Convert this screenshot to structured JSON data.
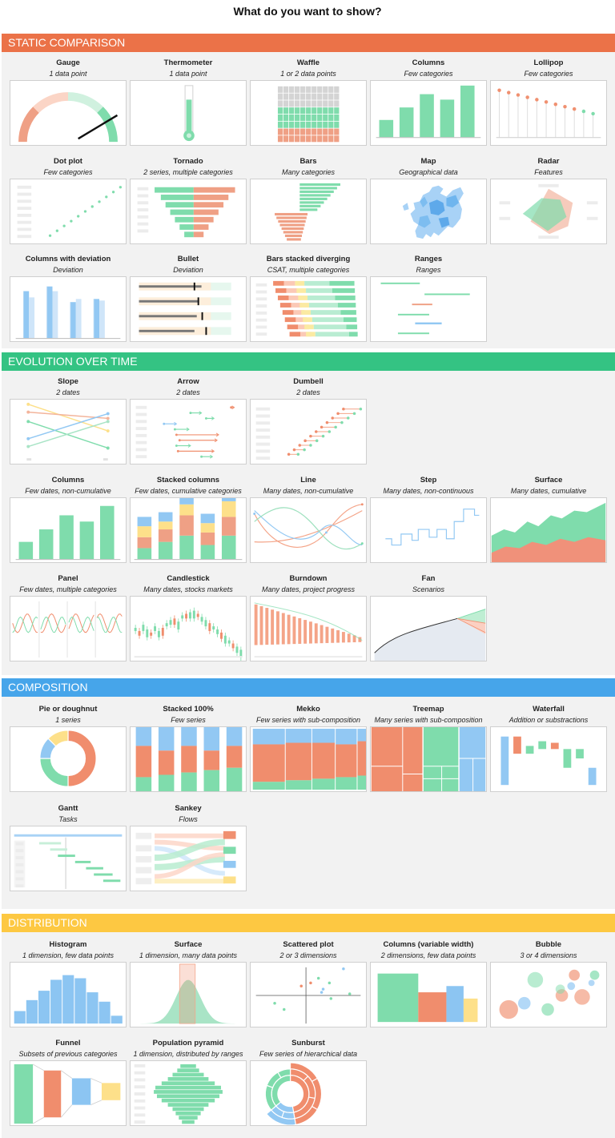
{
  "title": "What do you want to show?",
  "colors": {
    "orange": "#EB7248",
    "green": "#34C383",
    "blue": "#46A5EA",
    "yellow": "#FDC842",
    "mint": "#7FDCAC",
    "salmon": "#EFA085",
    "sky": "#92C8F3",
    "sand": "#FDE08A",
    "panel": "#F2F2F2"
  },
  "sections": [
    {
      "id": "static",
      "title": "STATIC COMPARISON",
      "color": "#EB7248",
      "rows": [
        [
          {
            "key": "gauge",
            "title": "Gauge",
            "subtitle": "1 data point"
          },
          {
            "key": "thermometer",
            "title": "Thermometer",
            "subtitle": "1 data point"
          },
          {
            "key": "waffle",
            "title": "Waffle",
            "subtitle": "1 or 2 data points"
          },
          {
            "key": "columns",
            "title": "Columns",
            "subtitle": "Few categories"
          },
          {
            "key": "lollipop",
            "title": "Lollipop",
            "subtitle": "Few categories"
          }
        ],
        [
          {
            "key": "dotplot",
            "title": "Dot plot",
            "subtitle": "Few categories"
          },
          {
            "key": "tornado",
            "title": "Tornado",
            "subtitle": "2 series, multiple categories"
          },
          {
            "key": "bars",
            "title": "Bars",
            "subtitle": "Many categories"
          },
          {
            "key": "map",
            "title": "Map",
            "subtitle": "Geographical data"
          },
          {
            "key": "radar",
            "title": "Radar",
            "subtitle": "Features"
          }
        ],
        [
          {
            "key": "coldev",
            "title": "Columns with deviation",
            "subtitle": "Deviation"
          },
          {
            "key": "bullet",
            "title": "Bullet",
            "subtitle": "Deviation"
          },
          {
            "key": "diverging",
            "title": "Bars stacked diverging",
            "subtitle": "CSAT, multiple categories"
          },
          {
            "key": "ranges",
            "title": "Ranges",
            "subtitle": "Ranges"
          }
        ]
      ]
    },
    {
      "id": "evolution",
      "title": "EVOLUTION OVER TIME",
      "color": "#34C383",
      "rows": [
        [
          {
            "key": "slope",
            "title": "Slope",
            "subtitle": "2 dates"
          },
          {
            "key": "arrow",
            "title": "Arrow",
            "subtitle": "2 dates"
          },
          {
            "key": "dumbell",
            "title": "Dumbell",
            "subtitle": "2 dates"
          }
        ],
        [
          {
            "key": "timecolumns",
            "title": "Columns",
            "subtitle": "Few dates, non-cumulative"
          },
          {
            "key": "stackedcols",
            "title": "Stacked columns",
            "subtitle": "Few dates, cumulative categories"
          },
          {
            "key": "line",
            "title": "Line",
            "subtitle": "Many dates, non-cumulative"
          },
          {
            "key": "step",
            "title": "Step",
            "subtitle": "Many dates, non-continuous"
          },
          {
            "key": "surface",
            "title": "Surface",
            "subtitle": "Many dates, cumulative"
          }
        ],
        [
          {
            "key": "panel",
            "title": "Panel",
            "subtitle": "Few dates, multiple categories"
          },
          {
            "key": "candlestick",
            "title": "Candlestick",
            "subtitle": "Many dates, stocks markets"
          },
          {
            "key": "burndown",
            "title": "Burndown",
            "subtitle": "Many dates, project progress"
          },
          {
            "key": "fan",
            "title": "Fan",
            "subtitle": "Scenarios"
          }
        ]
      ]
    },
    {
      "id": "composition",
      "title": "COMPOSITION",
      "color": "#46A5EA",
      "rows": [
        [
          {
            "key": "pie",
            "title": "Pie or doughnut",
            "subtitle": "1 series"
          },
          {
            "key": "stacked100",
            "title": "Stacked 100%",
            "subtitle": "Few series"
          },
          {
            "key": "mekko",
            "title": "Mekko",
            "subtitle": "Few series with sub-composition"
          },
          {
            "key": "treemap",
            "title": "Treemap",
            "subtitle": "Many series with sub-composition"
          },
          {
            "key": "waterfall",
            "title": "Waterfall",
            "subtitle": "Addition or substractions"
          }
        ],
        [
          {
            "key": "gantt",
            "title": "Gantt",
            "subtitle": "Tasks"
          },
          {
            "key": "sankey",
            "title": "Sankey",
            "subtitle": "Flows"
          }
        ]
      ]
    },
    {
      "id": "distribution",
      "title": "DISTRIBUTION",
      "color": "#FDC842",
      "rows": [
        [
          {
            "key": "histogram",
            "title": "Histogram",
            "subtitle": "1 dimension, few data points"
          },
          {
            "key": "distsurface",
            "title": "Surface",
            "subtitle": "1 dimension, many data points"
          },
          {
            "key": "scatter",
            "title": "Scattered plot",
            "subtitle": "2 or 3 dimensions"
          },
          {
            "key": "varwidth",
            "title": "Columns (variable width)",
            "subtitle": "2 dimensions, few data points"
          },
          {
            "key": "bubble",
            "title": "Bubble",
            "subtitle": "3 or 4 dimensions"
          }
        ],
        [
          {
            "key": "funnel",
            "title": "Funnel",
            "subtitle": "Subsets of previous categories"
          },
          {
            "key": "pyramid",
            "title": "Population pyramid",
            "subtitle": "1 dimension, distributed by ranges"
          },
          {
            "key": "sunburst",
            "title": "Sunburst",
            "subtitle": "Few series of hierarchical data"
          }
        ]
      ]
    }
  ]
}
